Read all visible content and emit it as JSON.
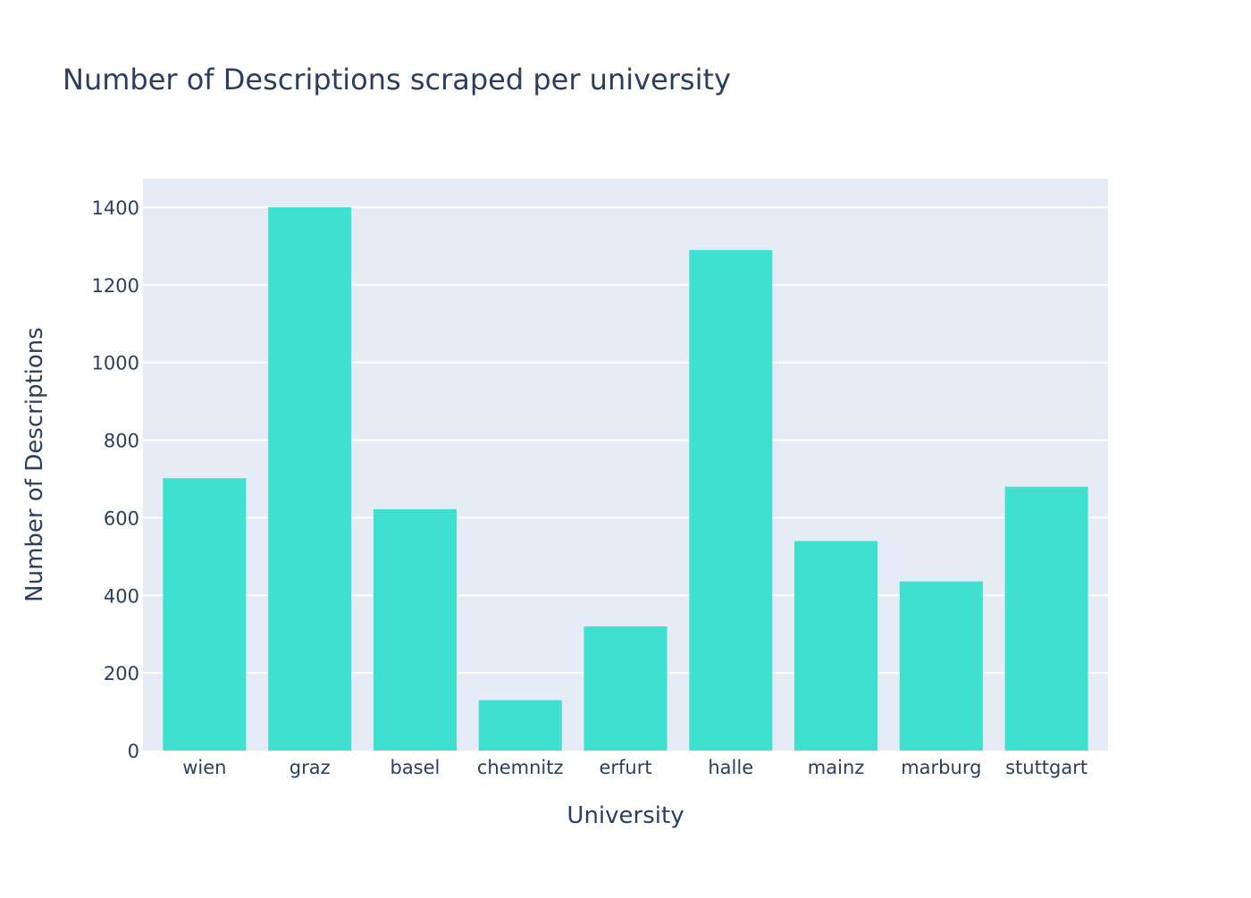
{
  "chart_data": {
    "type": "bar",
    "title": "Number of Descriptions scraped per university",
    "xlabel": "University",
    "ylabel": "Number of Descriptions",
    "categories": [
      "wien",
      "graz",
      "basel",
      "chemnitz",
      "erfurt",
      "halle",
      "mainz",
      "marburg",
      "stuttgart"
    ],
    "values": [
      702,
      1400,
      622,
      130,
      320,
      1290,
      540,
      436,
      680
    ],
    "ylim": [
      0,
      1473.7
    ],
    "yticks": [
      0,
      200,
      400,
      600,
      800,
      1000,
      1200,
      1400
    ],
    "grid": true,
    "legend": "none",
    "bar_color": "#40e0d0",
    "plot_background": "#e5ecf6",
    "gridline_color": "#ffffff",
    "text_color": "#2a3f5f"
  }
}
